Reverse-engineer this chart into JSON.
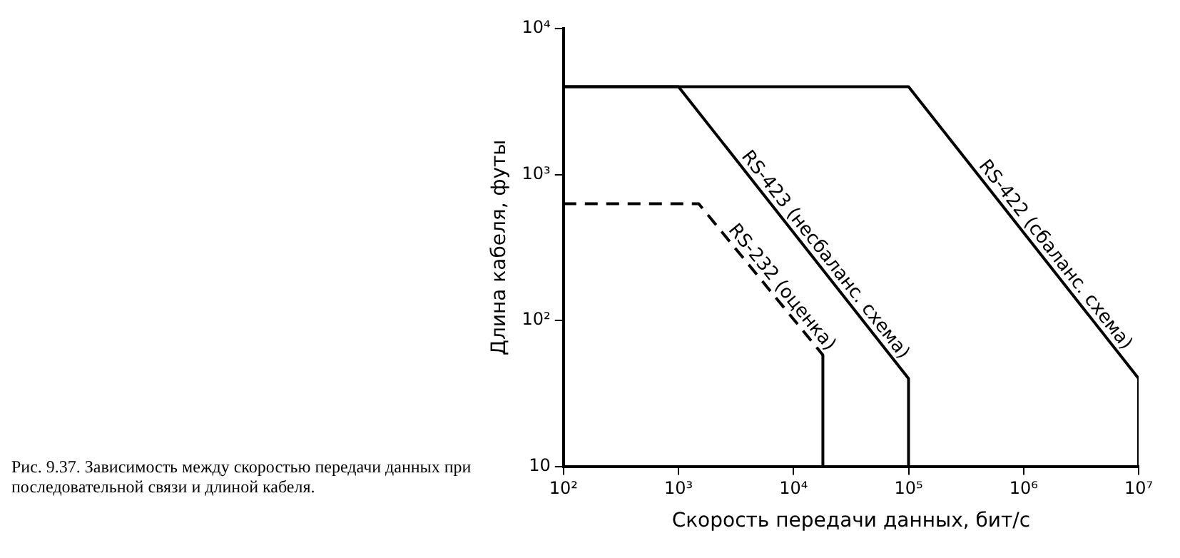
{
  "chart_data": {
    "type": "line",
    "xlabel": "Скорость передачи данных, бит/с",
    "ylabel": "Длина кабеля, футы",
    "log": "xy",
    "grid": false,
    "legend": false,
    "marker": "none",
    "xlim": [
      100,
      10000000
    ],
    "ylim": [
      10,
      10000
    ],
    "xticks": [
      {
        "value": 100,
        "label": "10²"
      },
      {
        "value": 1000,
        "label": "10³"
      },
      {
        "value": 10000,
        "label": "10⁴"
      },
      {
        "value": 100000,
        "label": "10⁵"
      },
      {
        "value": 1000000,
        "label": "10⁶"
      },
      {
        "value": 10000000,
        "label": "10⁷"
      }
    ],
    "yticks": [
      10,
      {
        "value": 100,
        "label": "10²"
      },
      {
        "value": 1000,
        "label": "10³"
      },
      {
        "value": 10000,
        "label": "10⁴"
      }
    ],
    "series": [
      {
        "name": "RS-422 (сбаланс. схема)",
        "color": "#000000",
        "line_style": "solid",
        "x": [
          100,
          100000,
          10000000,
          10000000
        ],
        "values": [
          4000,
          4000,
          40,
          10
        ]
      },
      {
        "name": "RS-423 (несбаланс. схема)",
        "color": "#000000",
        "line_style": "solid",
        "x": [
          100,
          1000,
          100000,
          100000
        ],
        "values": [
          4000,
          4000,
          40,
          10
        ]
      },
      {
        "name": "RS-232 (оценка)",
        "color": "#000000",
        "line_style": "dashed",
        "x": [
          100,
          1500,
          18000
        ],
        "values": [
          630,
          630,
          58
        ]
      },
      {
        "color": "#000000",
        "line_style": "solid",
        "x": [
          18000,
          18000
        ],
        "values": [
          58,
          10
        ]
      }
    ],
    "annotations": [
      "Рис. 9.37. Зависимость между скоростью передачи данных при последовательной связи и длиной кабеля."
    ]
  }
}
